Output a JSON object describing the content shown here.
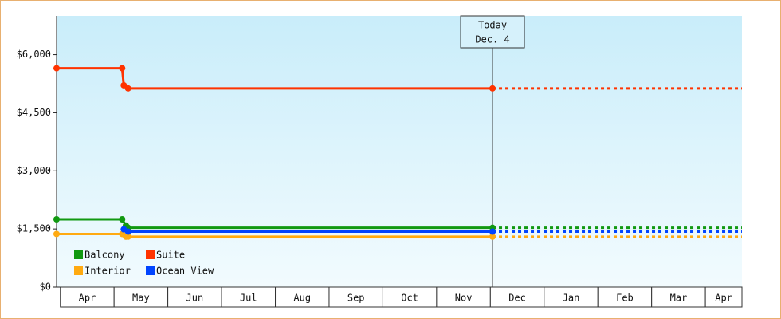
{
  "chart_data": {
    "type": "line",
    "categories": [
      "Apr",
      "May",
      "Jun",
      "Jul",
      "Aug",
      "Sep",
      "Oct",
      "Nov",
      "Dec",
      "Jan",
      "Feb",
      "Mar",
      "Apr"
    ],
    "xlim": [
      0,
      12.75
    ],
    "ylim": [
      0,
      7000
    ],
    "yticks": [
      {
        "value": 0,
        "label": "$0"
      },
      {
        "value": 1500,
        "label": "$1,500"
      },
      {
        "value": 3000,
        "label": "$3,000"
      },
      {
        "value": 4500,
        "label": "$4,500"
      },
      {
        "value": 6000,
        "label": "$6,000"
      }
    ],
    "today": {
      "label": [
        "Today",
        "Dec. 4"
      ],
      "x": 8.11
    },
    "series": [
      {
        "name": "Balcony",
        "color": "#119911",
        "x": [
          0,
          1.22,
          1.29,
          1.33,
          8.11
        ],
        "values": [
          1750,
          1750,
          1590,
          1530,
          1530
        ]
      },
      {
        "name": "Suite",
        "color": "#ff3300",
        "x": [
          0,
          1.22,
          1.25,
          1.33,
          8.11
        ],
        "values": [
          5650,
          5650,
          5210,
          5130,
          5130
        ]
      },
      {
        "name": "Interior",
        "color": "#ffaa11",
        "x": [
          0,
          1.22,
          1.29,
          1.33,
          8.11
        ],
        "values": [
          1370,
          1370,
          1300,
          1300,
          1300
        ]
      },
      {
        "name": "Ocean View",
        "color": "#0044ff",
        "x": [
          1.25,
          1.33,
          8.11
        ],
        "values": [
          1490,
          1430,
          1430
        ]
      }
    ]
  }
}
